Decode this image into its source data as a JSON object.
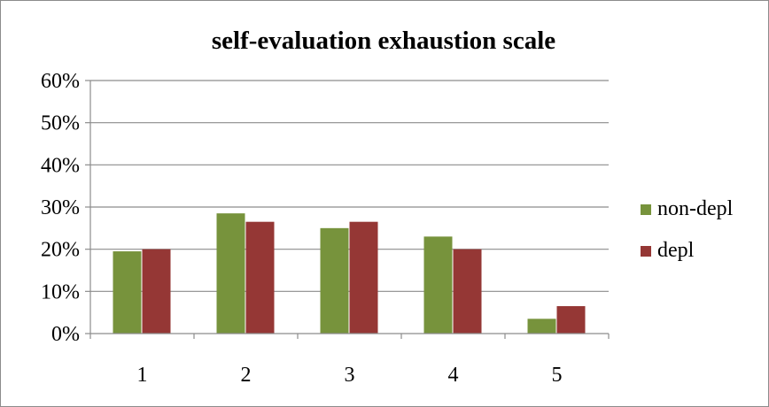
{
  "chart_data": {
    "type": "bar",
    "title": "self-evaluation exhaustion scale",
    "xlabel": "",
    "ylabel": "",
    "categories": [
      "1",
      "2",
      "3",
      "4",
      "5"
    ],
    "series": [
      {
        "name": "non-depl",
        "color": "#77933c",
        "values": [
          19.5,
          28.5,
          25.0,
          23.0,
          3.5
        ]
      },
      {
        "name": "depl",
        "color": "#953735",
        "values": [
          20.0,
          26.5,
          26.5,
          20.0,
          6.5
        ]
      }
    ],
    "ylim": [
      0,
      60
    ],
    "yticks": [
      0,
      10,
      20,
      30,
      40,
      50,
      60
    ],
    "ytick_labels": [
      "0%",
      "10%",
      "20%",
      "30%",
      "40%",
      "50%",
      "60%"
    ],
    "grid": true,
    "legend": "right"
  }
}
